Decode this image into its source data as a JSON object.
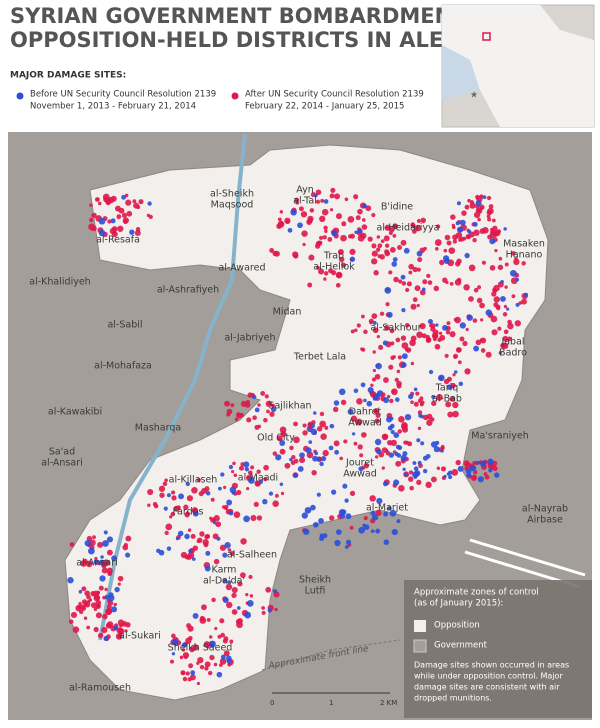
{
  "header": {
    "title_lines": [
      "SYRIAN GOVERNMENT BOMBARDMENT OF",
      "OPPOSITION-HELD DISTRICTS IN ALEPPO"
    ],
    "legend_heading": "MAJOR DAMAGE SITES:",
    "legend": [
      {
        "lines": [
          "Before UN Security Council Resolution 2139",
          "November 1, 2013 - February 21, 2014"
        ],
        "color": "#2b4fd8"
      },
      {
        "lines": [
          "After UN Security Council Resolution 2139",
          "February 22, 2014 - January 25, 2015"
        ],
        "color": "#e0174a"
      }
    ]
  },
  "map_labels": [
    {
      "lines": [
        "al-Sheikh",
        "Maqsood"
      ]
    },
    {
      "lines": [
        "Ayn",
        "al-Tal"
      ]
    },
    {
      "lines": [
        "B'idine"
      ]
    },
    {
      "lines": [
        "al-Resafa"
      ]
    },
    {
      "lines": [
        "al-Heidariyya"
      ]
    },
    {
      "lines": [
        "Trab",
        "al-Hellok"
      ]
    },
    {
      "lines": [
        "Masaken",
        "Hanano"
      ]
    },
    {
      "lines": [
        "al-Awared"
      ]
    },
    {
      "lines": [
        "al-Khalidiyeh"
      ]
    },
    {
      "lines": [
        "al-Ashrafiyeh"
      ]
    },
    {
      "lines": [
        "Midan"
      ]
    },
    {
      "lines": [
        "al-Sakhour"
      ]
    },
    {
      "lines": [
        "al-Sabil"
      ]
    },
    {
      "lines": [
        "al-Jabriyeh"
      ]
    },
    {
      "lines": [
        "Jabal",
        "Badro"
      ]
    },
    {
      "lines": [
        "Terbet Lala"
      ]
    },
    {
      "lines": [
        "al-Mohafaza"
      ]
    },
    {
      "lines": [
        "Tariq",
        "al-Bab"
      ]
    },
    {
      "lines": [
        "Sajlikhan"
      ]
    },
    {
      "lines": [
        "Dahret",
        "Awwad"
      ]
    },
    {
      "lines": [
        "al-Kawakibi"
      ]
    },
    {
      "lines": [
        "Masharqa"
      ]
    },
    {
      "lines": [
        "Old City"
      ]
    },
    {
      "lines": [
        "Ma'sraniyeh"
      ]
    },
    {
      "lines": [
        "Sa'ad",
        "al-Ansari"
      ]
    },
    {
      "lines": [
        "Jouret",
        "Awwad"
      ]
    },
    {
      "lines": [
        "al-Killaseh"
      ]
    },
    {
      "lines": [
        "al-Maadi"
      ]
    },
    {
      "lines": [
        "al-Marjet"
      ]
    },
    {
      "lines": [
        "Fardos"
      ]
    },
    {
      "lines": [
        "al-Nayrab",
        "Airbase"
      ]
    },
    {
      "lines": [
        "al-Ansari"
      ]
    },
    {
      "lines": [
        "al-Salheen"
      ]
    },
    {
      "lines": [
        "Karm",
        "al-Da'da'"
      ]
    },
    {
      "lines": [
        "Sheikh",
        "Lutfi"
      ]
    },
    {
      "lines": [
        "al-Sukari"
      ]
    },
    {
      "lines": [
        "Sheikh Saeed"
      ]
    },
    {
      "lines": [
        "al-Ramouseh"
      ]
    }
  ],
  "front_line_label": "Approximate front line",
  "control_box": {
    "title_lines": [
      "Approximate zones of control",
      "(as of January 2015):"
    ],
    "items": [
      "Opposition",
      "Government"
    ],
    "note_lines": [
      "Damage sites shown occurred in areas",
      "while under opposition control. Major",
      "damage sites are consistent with air",
      "dropped munitions."
    ]
  },
  "scale": [
    "0",
    "1",
    "2 KM"
  ]
}
